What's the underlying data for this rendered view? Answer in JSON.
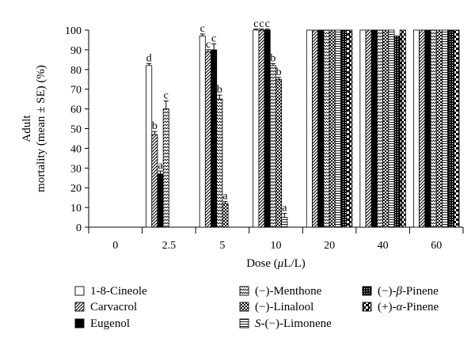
{
  "chart_data": {
    "type": "bar",
    "xlabel_parts": [
      "Dose (",
      "μ",
      "L/L)"
    ],
    "ylabel_line1": "Adult",
    "ylabel_line2": "mortality (mean ± SE) (%)",
    "ylim": [
      0,
      100
    ],
    "yticks": [
      0,
      10,
      20,
      30,
      40,
      50,
      60,
      70,
      80,
      90,
      100
    ],
    "categories": [
      "0",
      "2.5",
      "5",
      "10",
      "20",
      "40",
      "60"
    ],
    "grid": false,
    "legend_position": "bottom",
    "series": [
      {
        "name_parts": [
          [
            "1-8-Cineole",
            false
          ]
        ],
        "pattern": "white",
        "values": [
          0,
          82,
          97,
          100,
          100,
          100,
          100
        ],
        "errors": [
          0,
          1,
          1,
          0.5,
          0,
          0,
          0
        ],
        "labels": [
          "",
          "d",
          "c",
          "c",
          "",
          "",
          ""
        ]
      },
      {
        "name_parts": [
          [
            "Carvacrol",
            false
          ]
        ],
        "pattern": "diag",
        "values": [
          0,
          47,
          89,
          100,
          100,
          100,
          100
        ],
        "errors": [
          0,
          1.5,
          1,
          0.5,
          0,
          0,
          0
        ],
        "labels": [
          "",
          "b",
          "c",
          "c",
          "",
          "",
          ""
        ]
      },
      {
        "name_parts": [
          [
            "Eugenol",
            false
          ]
        ],
        "pattern": "black",
        "values": [
          0,
          27,
          90,
          100,
          100,
          100,
          100
        ],
        "errors": [
          0,
          1.5,
          3,
          0.5,
          0,
          0,
          0
        ],
        "labels": [
          "",
          "a",
          "c",
          "c",
          "",
          "",
          ""
        ]
      },
      {
        "name_parts": [
          [
            "(−)-Menthone",
            false
          ]
        ],
        "pattern": "zigzag",
        "values": [
          0,
          60,
          65,
          82,
          100,
          100,
          100
        ],
        "errors": [
          0,
          4,
          2,
          1,
          0,
          0,
          0
        ],
        "labels": [
          "",
          "c",
          "b",
          "b",
          "",
          "",
          ""
        ]
      },
      {
        "name_parts": [
          [
            "(−)-Linalool",
            false
          ]
        ],
        "pattern": "checker",
        "values": [
          0,
          0,
          12,
          75,
          100,
          100,
          100
        ],
        "errors": [
          0,
          0,
          1,
          1,
          0,
          0,
          0
        ],
        "labels": [
          "",
          "",
          "a",
          "b",
          "",
          "",
          ""
        ]
      },
      {
        "name_parts": [
          [
            "S",
            true
          ],
          [
            "-(−)-Limonene",
            false
          ]
        ],
        "pattern": "hlines",
        "values": [
          0,
          0,
          0,
          5,
          100,
          100,
          100
        ],
        "errors": [
          0,
          0,
          0,
          2,
          0,
          0,
          0
        ],
        "labels": [
          "",
          "",
          "",
          "a",
          "",
          "",
          ""
        ]
      },
      {
        "name_parts": [
          [
            "(−)-",
            false
          ],
          [
            "β",
            true
          ],
          [
            "-Pinene",
            false
          ]
        ],
        "pattern": "dots",
        "values": [
          0,
          0,
          0,
          0,
          100,
          97,
          100
        ],
        "errors": [
          0,
          0,
          0,
          0,
          0,
          0,
          0
        ],
        "labels": [
          "",
          "",
          "",
          "",
          "",
          "",
          ""
        ]
      },
      {
        "name_parts": [
          [
            "(+)-",
            false
          ],
          [
            "α",
            true
          ],
          [
            "-Pinene",
            false
          ]
        ],
        "pattern": "blocks",
        "values": [
          0,
          0,
          0,
          0,
          100,
          100,
          100
        ],
        "errors": [
          0,
          0,
          0,
          0,
          0,
          0,
          0
        ],
        "labels": [
          "",
          "",
          "",
          "",
          "",
          "",
          ""
        ]
      }
    ]
  }
}
